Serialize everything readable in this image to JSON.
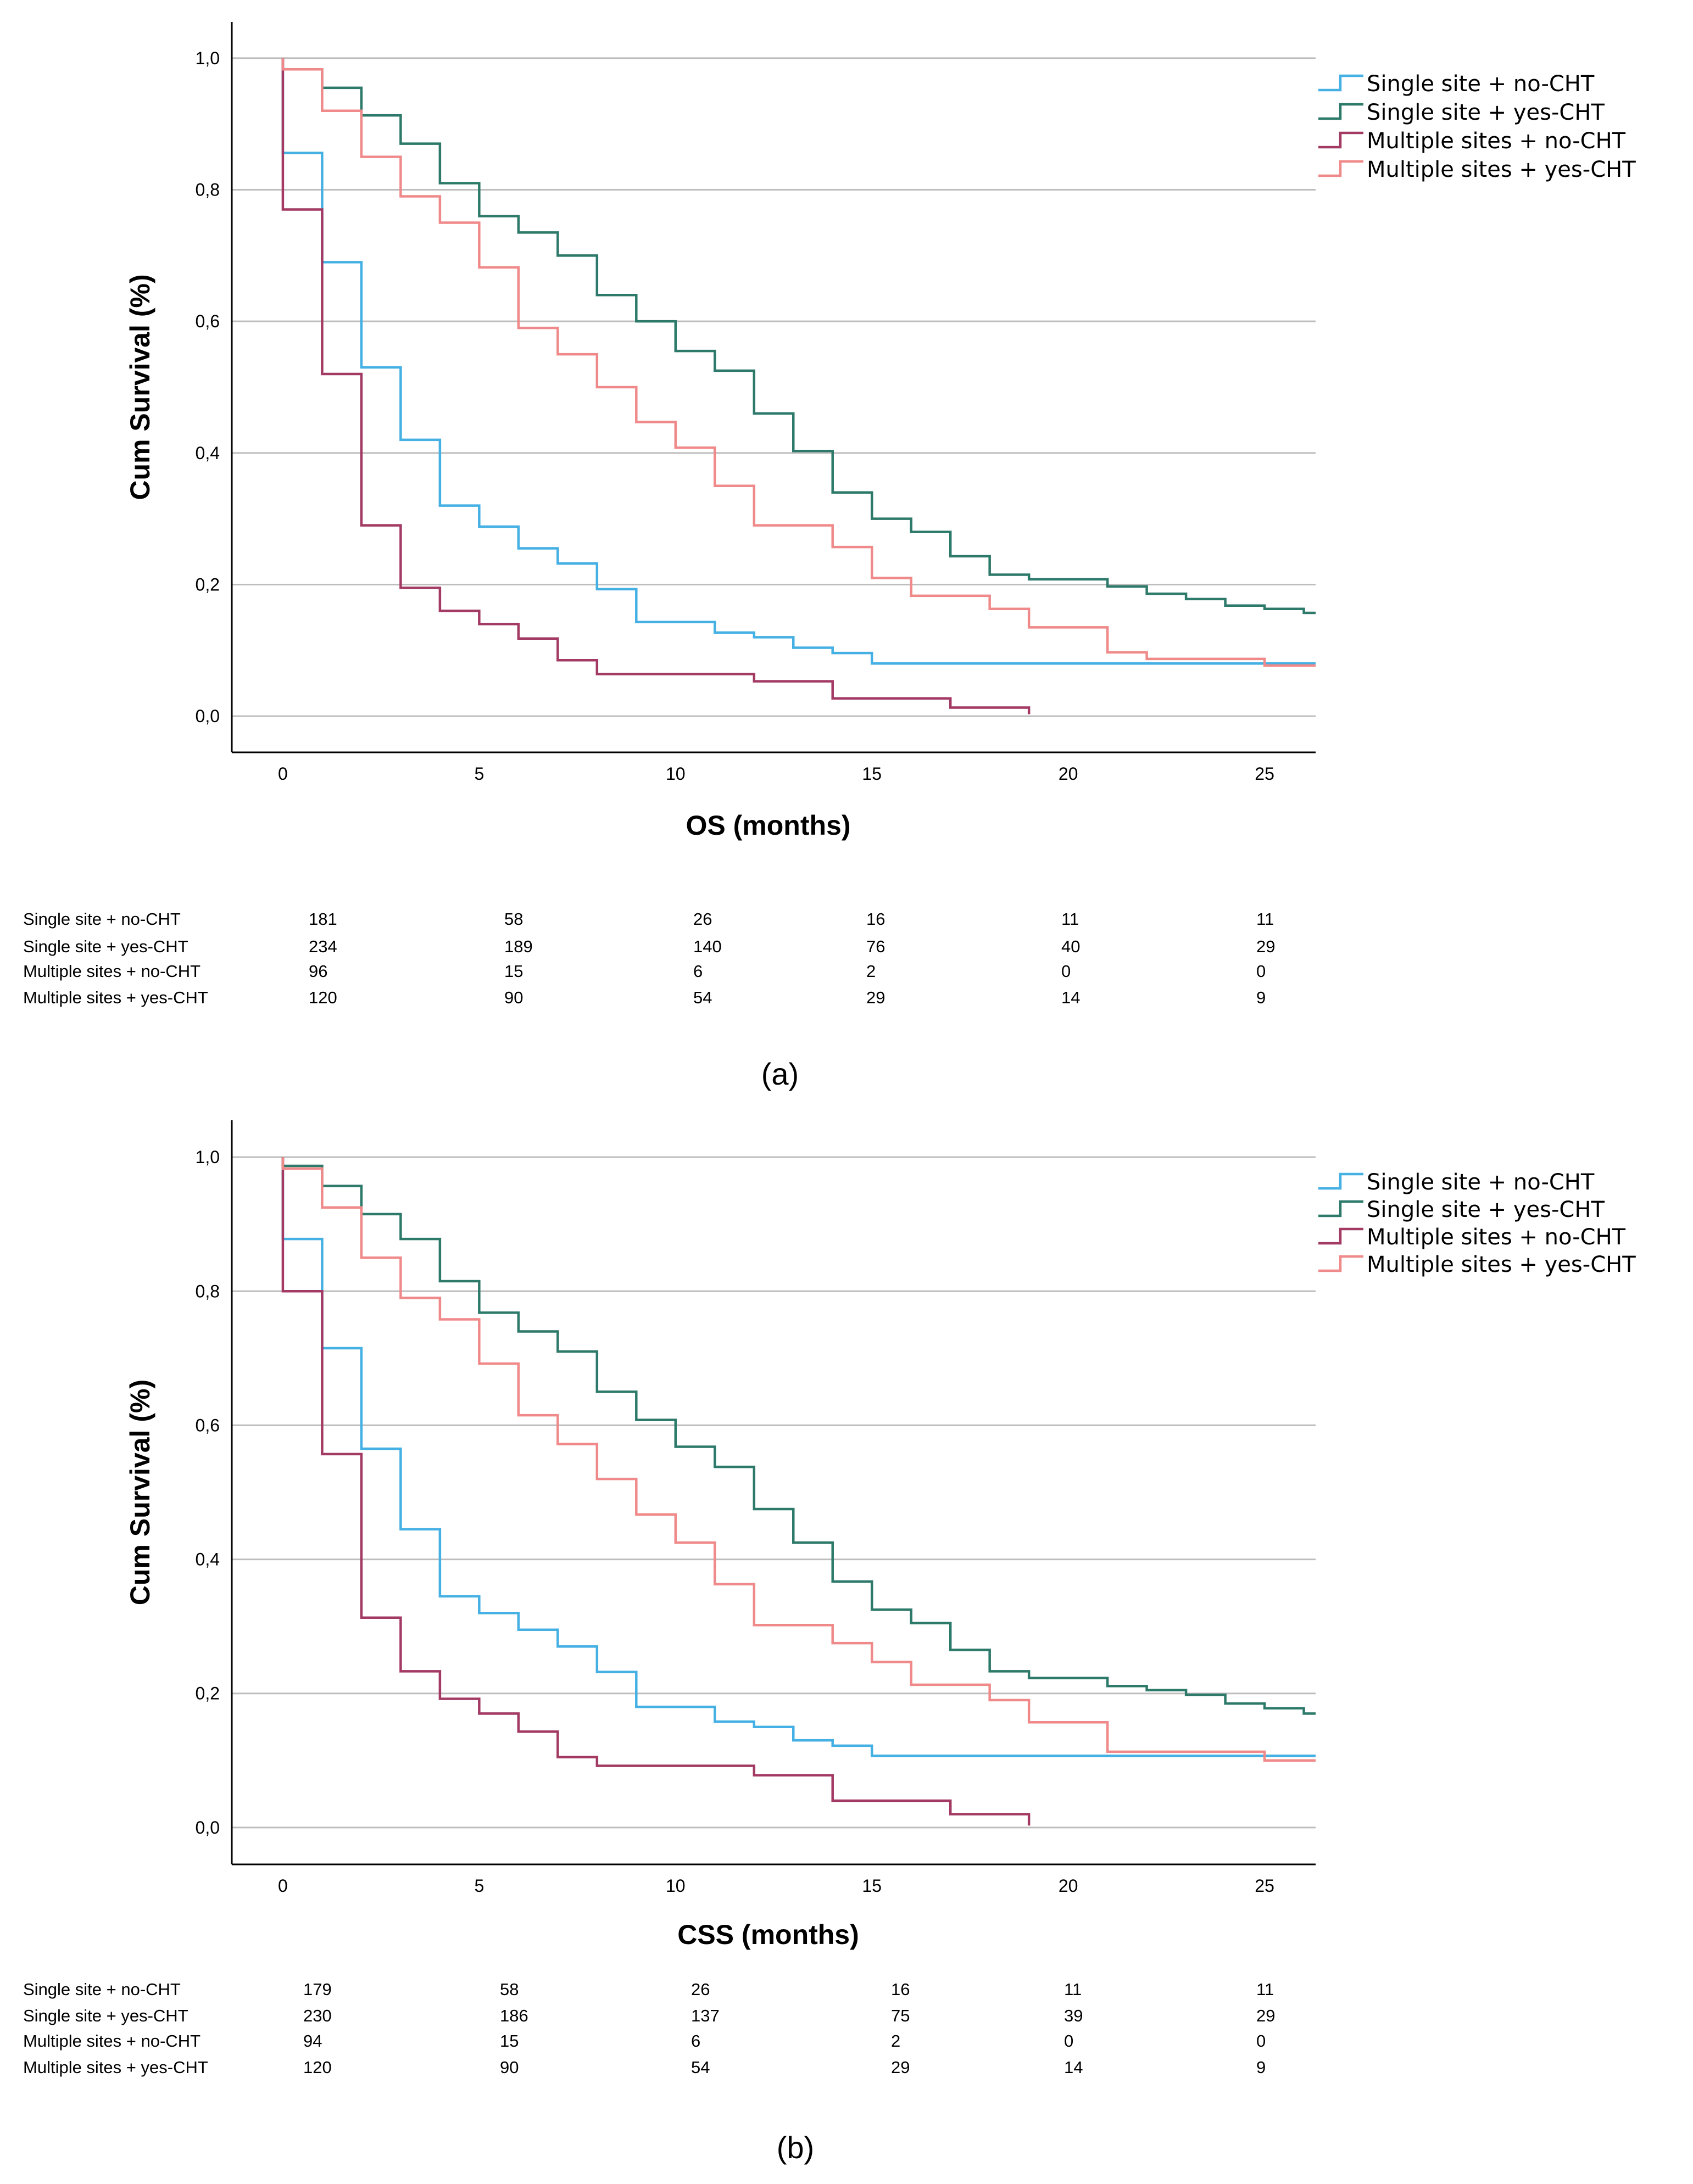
{
  "figure_caption_a": "(a)",
  "figure_caption_b": "(b)",
  "colors": {
    "single_no": "#45b0e3",
    "single_yes": "#2e7a6a",
    "multi_no": "#a33a64",
    "multi_yes": "#f08a8a",
    "grid": "#bdbdbd"
  },
  "chart_data": [
    {
      "type": "line",
      "step": true,
      "panel": "(a)",
      "xlabel": "OS (months)",
      "ylabel": "Cum Survival (%)",
      "xlim": [
        -1.3,
        26.3
      ],
      "ylim": [
        -0.055,
        1.055
      ],
      "xticks": [
        0,
        5,
        10,
        15,
        20,
        25
      ],
      "yticks": [
        0.0,
        0.2,
        0.4,
        0.6,
        0.8,
        1.0
      ],
      "ytick_labels": [
        "0,0",
        "0,2",
        "0,4",
        "0,6",
        "0,8",
        "1,0"
      ],
      "grid": "horizontal",
      "legend_position": "top-right",
      "series": [
        {
          "name": "Single site + no-CHT",
          "color_key": "single_no",
          "x": [
            0,
            0,
            1,
            2,
            3,
            4,
            5,
            6,
            7,
            8,
            9,
            10,
            11,
            12,
            13,
            14,
            15,
            26.3
          ],
          "y": [
            1.0,
            0.856,
            0.69,
            0.53,
            0.42,
            0.32,
            0.288,
            0.255,
            0.232,
            0.193,
            0.143,
            0.143,
            0.127,
            0.12,
            0.104,
            0.096,
            0.08,
            0.08
          ]
        },
        {
          "name": "Single site + yes-CHT",
          "color_key": "single_yes",
          "x": [
            0,
            0,
            1,
            2,
            3,
            4,
            5,
            6,
            7,
            8,
            9,
            10,
            11,
            12,
            13,
            14,
            15,
            16,
            17,
            18,
            19,
            20,
            21,
            22,
            23,
            24,
            25,
            26,
            26.3
          ],
          "y": [
            1.0,
            0.983,
            0.955,
            0.913,
            0.87,
            0.81,
            0.76,
            0.735,
            0.7,
            0.64,
            0.6,
            0.555,
            0.525,
            0.46,
            0.403,
            0.34,
            0.3,
            0.28,
            0.243,
            0.215,
            0.208,
            0.208,
            0.197,
            0.186,
            0.178,
            0.168,
            0.163,
            0.157,
            0.157
          ]
        },
        {
          "name": "Multiple sites + no-CHT",
          "color_key": "multi_no",
          "x": [
            0,
            0,
            1,
            2,
            3,
            4,
            5,
            6,
            7,
            8,
            9,
            10,
            11,
            12,
            13,
            14,
            15,
            16,
            17,
            18,
            19
          ],
          "y": [
            1.0,
            0.77,
            0.52,
            0.29,
            0.195,
            0.16,
            0.14,
            0.118,
            0.085,
            0.064,
            0.064,
            0.064,
            0.064,
            0.053,
            0.053,
            0.027,
            0.027,
            0.027,
            0.013,
            0.013,
            0.003
          ]
        },
        {
          "name": "Multiple sites + yes-CHT",
          "color_key": "multi_yes",
          "x": [
            0,
            0,
            1,
            2,
            3,
            4,
            5,
            6,
            7,
            8,
            9,
            10,
            11,
            12,
            13,
            14,
            15,
            16,
            17,
            18,
            19,
            20,
            21,
            22,
            23,
            24,
            25,
            26.3
          ],
          "y": [
            1.0,
            0.983,
            0.92,
            0.85,
            0.79,
            0.75,
            0.682,
            0.59,
            0.55,
            0.5,
            0.447,
            0.408,
            0.35,
            0.29,
            0.29,
            0.257,
            0.21,
            0.183,
            0.183,
            0.163,
            0.135,
            0.135,
            0.097,
            0.087,
            0.087,
            0.087,
            0.077,
            0.077
          ]
        }
      ],
      "risk_table": {
        "time_points": [
          0,
          5,
          10,
          15,
          20,
          25
        ],
        "rows": [
          {
            "label": "Single site + no-CHT",
            "values": [
              "181",
              "58",
              "26",
              "16",
              "11",
              "11"
            ]
          },
          {
            "label": "Single site + yes-CHT",
            "values": [
              "234",
              "189",
              "140",
              "76",
              "40",
              "29"
            ]
          },
          {
            "label": "Multiple sites + no-CHT",
            "values": [
              "96",
              "15",
              "6",
              "2",
              "0",
              "0"
            ]
          },
          {
            "label": "Multiple sites + yes-CHT",
            "values": [
              "120",
              "90",
              "54",
              "29",
              "14",
              "9"
            ]
          }
        ]
      }
    },
    {
      "type": "line",
      "step": true,
      "panel": "(b)",
      "xlabel": "CSS (months)",
      "ylabel": "Cum Survival (%)",
      "xlim": [
        -1.3,
        26.3
      ],
      "ylim": [
        -0.055,
        1.055
      ],
      "xticks": [
        0,
        5,
        10,
        15,
        20,
        25
      ],
      "yticks": [
        0.0,
        0.2,
        0.4,
        0.6,
        0.8,
        1.0
      ],
      "ytick_labels": [
        "0,0",
        "0,2",
        "0,4",
        "0,6",
        "0,8",
        "1,0"
      ],
      "grid": "horizontal",
      "legend_position": "top-right",
      "series": [
        {
          "name": "Single site + no-CHT",
          "color_key": "single_no",
          "x": [
            0,
            0,
            1,
            2,
            3,
            4,
            5,
            6,
            7,
            8,
            9,
            10,
            11,
            12,
            13,
            14,
            15,
            26.3
          ],
          "y": [
            1.0,
            0.878,
            0.715,
            0.565,
            0.445,
            0.345,
            0.32,
            0.295,
            0.27,
            0.232,
            0.18,
            0.18,
            0.158,
            0.15,
            0.13,
            0.122,
            0.107,
            0.107
          ]
        },
        {
          "name": "Single site + yes-CHT",
          "color_key": "single_yes",
          "x": [
            0,
            0,
            1,
            2,
            3,
            4,
            5,
            6,
            7,
            8,
            9,
            10,
            11,
            12,
            13,
            14,
            15,
            16,
            17,
            18,
            19,
            20,
            21,
            22,
            23,
            24,
            25,
            26,
            26.3
          ],
          "y": [
            1.0,
            0.987,
            0.957,
            0.915,
            0.878,
            0.815,
            0.768,
            0.74,
            0.71,
            0.65,
            0.608,
            0.568,
            0.538,
            0.475,
            0.425,
            0.367,
            0.325,
            0.305,
            0.265,
            0.233,
            0.223,
            0.223,
            0.211,
            0.205,
            0.198,
            0.185,
            0.178,
            0.17,
            0.17
          ]
        },
        {
          "name": "Multiple sites + no-CHT",
          "color_key": "multi_no",
          "x": [
            0,
            0,
            1,
            2,
            3,
            4,
            5,
            6,
            7,
            8,
            9,
            10,
            11,
            12,
            13,
            14,
            15,
            16,
            17,
            18,
            19
          ],
          "y": [
            1.0,
            0.8,
            0.557,
            0.313,
            0.233,
            0.192,
            0.17,
            0.143,
            0.105,
            0.092,
            0.092,
            0.092,
            0.092,
            0.078,
            0.078,
            0.04,
            0.04,
            0.04,
            0.02,
            0.02,
            0.003
          ]
        },
        {
          "name": "Multiple sites + yes-CHT",
          "color_key": "multi_yes",
          "x": [
            0,
            0,
            1,
            2,
            3,
            4,
            5,
            6,
            7,
            8,
            9,
            10,
            11,
            12,
            13,
            14,
            15,
            16,
            17,
            18,
            19,
            20,
            21,
            22,
            23,
            24,
            25,
            26.3
          ],
          "y": [
            1.0,
            0.983,
            0.925,
            0.85,
            0.79,
            0.758,
            0.692,
            0.615,
            0.572,
            0.52,
            0.467,
            0.425,
            0.363,
            0.302,
            0.302,
            0.275,
            0.247,
            0.213,
            0.213,
            0.19,
            0.157,
            0.157,
            0.113,
            0.113,
            0.113,
            0.113,
            0.1,
            0.1
          ]
        }
      ],
      "risk_table": {
        "time_points": [
          0,
          5,
          10,
          15,
          20,
          25
        ],
        "rows": [
          {
            "label": "Single site + no-CHT",
            "values": [
              "179",
              "58",
              "26",
              "16",
              "11",
              "11"
            ]
          },
          {
            "label": "Single site + yes-CHT",
            "values": [
              "230",
              "186",
              "137",
              "75",
              "39",
              "29"
            ]
          },
          {
            "label": "Multiple sites + no-CHT",
            "values": [
              "94",
              "15",
              "6",
              "2",
              "0",
              "0"
            ]
          },
          {
            "label": "Multiple sites + yes-CHT",
            "values": [
              "120",
              "90",
              "54",
              "29",
              "14",
              "9"
            ]
          }
        ]
      }
    }
  ]
}
